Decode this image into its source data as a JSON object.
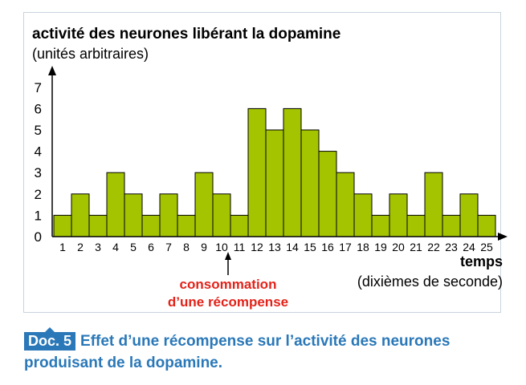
{
  "chart_data": {
    "type": "bar",
    "title": "activité des neurones libérant la dopamine",
    "subtitle": "(unités arbitraires)",
    "xlabel": "temps",
    "xlabel_sub": "(dixièmes de seconde)",
    "ylabel": "",
    "ylim": [
      0,
      7
    ],
    "yticks": [
      "0",
      "1",
      "2",
      "3",
      "4",
      "5",
      "6",
      "7"
    ],
    "categories": [
      "1",
      "2",
      "3",
      "4",
      "5",
      "6",
      "7",
      "8",
      "9",
      "10",
      "11",
      "12",
      "13",
      "14",
      "15",
      "16",
      "17",
      "18",
      "19",
      "20",
      "21",
      "22",
      "23",
      "24",
      "25"
    ],
    "values": [
      1,
      2,
      1,
      3,
      2,
      1,
      2,
      1,
      3,
      2,
      1,
      6,
      5,
      6,
      5,
      4,
      3,
      2,
      1,
      2,
      1,
      3,
      1,
      2,
      1
    ],
    "bar_color": "#a5c400",
    "grid": false,
    "legend": "none",
    "annotation": {
      "at_category": "10",
      "line1": "consommation",
      "line2": "d’une récompense",
      "color": "#e2231a"
    }
  },
  "caption": {
    "badge": "Doc. 5",
    "text": "Effet d’une récompense sur l’activité des neurones produisant de la dopamine.",
    "color": "#2a78b8"
  }
}
